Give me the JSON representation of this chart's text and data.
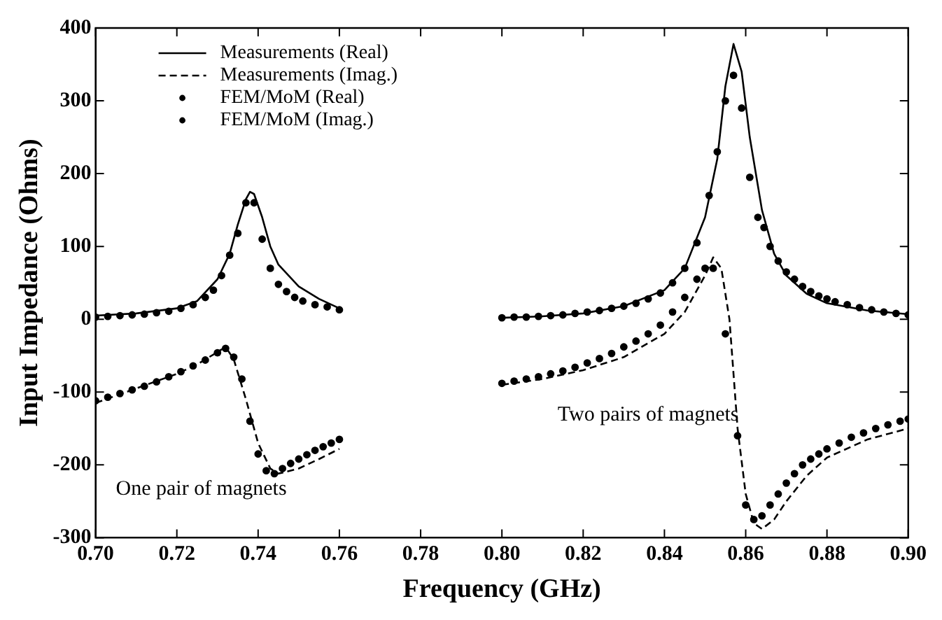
{
  "chart_data": {
    "type": "line",
    "xlabel": "Frequency (GHz)",
    "ylabel": "Input Impedance (Ohms)",
    "xlim": [
      0.7,
      0.9
    ],
    "ylim": [
      -300,
      400
    ],
    "xticks": [
      {
        "value": 0.7,
        "label": "0.70"
      },
      {
        "value": 0.72,
        "label": "0.72"
      },
      {
        "value": 0.74,
        "label": "0.74"
      },
      {
        "value": 0.76,
        "label": "0.76"
      },
      {
        "value": 0.78,
        "label": "0.78"
      },
      {
        "value": 0.8,
        "label": "0.80"
      },
      {
        "value": 0.82,
        "label": "0.82"
      },
      {
        "value": 0.84,
        "label": "0.84"
      },
      {
        "value": 0.86,
        "label": "0.86"
      },
      {
        "value": 0.88,
        "label": "0.88"
      },
      {
        "value": 0.9,
        "label": "0.90"
      }
    ],
    "yticks": [
      -300,
      -200,
      -100,
      0,
      100,
      200,
      300,
      400
    ],
    "grid": false,
    "legend": "top left",
    "series": [
      {
        "name": "Measurements (Real)",
        "type": "line",
        "line_style": "solid",
        "color": "#000000",
        "x": [
          0.7,
          0.71,
          0.72,
          0.725,
          0.73,
          0.733,
          0.735,
          0.737,
          0.738,
          0.739,
          0.741,
          0.743,
          0.745,
          0.75,
          0.755,
          0.76,
          0.78,
          0.8,
          0.81,
          0.82,
          0.83,
          0.84,
          0.845,
          0.85,
          0.853,
          0.855,
          0.857,
          0.859,
          0.861,
          0.864,
          0.867,
          0.87,
          0.875,
          0.88,
          0.89,
          0.9
        ],
        "values": [
          5,
          8,
          15,
          25,
          55,
          90,
          130,
          165,
          175,
          172,
          140,
          100,
          75,
          45,
          28,
          15,
          null,
          2,
          4,
          8,
          18,
          40,
          70,
          140,
          220,
          320,
          378,
          340,
          250,
          150,
          90,
          60,
          35,
          22,
          12,
          7
        ]
      },
      {
        "name": "Measurements (Imag.)",
        "type": "line",
        "line_style": "dashed",
        "color": "#000000",
        "x": [
          0.7,
          0.71,
          0.72,
          0.725,
          0.73,
          0.732,
          0.734,
          0.737,
          0.74,
          0.743,
          0.745,
          0.75,
          0.755,
          0.76,
          0.78,
          0.8,
          0.81,
          0.82,
          0.83,
          0.84,
          0.845,
          0.85,
          0.852,
          0.854,
          0.856,
          0.858,
          0.86,
          0.862,
          0.864,
          0.867,
          0.87,
          0.875,
          0.88,
          0.89,
          0.9
        ],
        "values": [
          -115,
          -95,
          -75,
          -62,
          -45,
          -38,
          -55,
          -110,
          -170,
          -205,
          -212,
          -205,
          -192,
          -178,
          null,
          -90,
          -82,
          -70,
          -52,
          -20,
          10,
          60,
          85,
          70,
          0,
          -150,
          -240,
          -280,
          -288,
          -275,
          -250,
          -215,
          -190,
          -165,
          -150
        ]
      },
      {
        "name": "FEM/MoM (Real)",
        "type": "scatter",
        "marker": "circle",
        "color": "#000000",
        "x": [
          0.7,
          0.703,
          0.706,
          0.709,
          0.712,
          0.715,
          0.718,
          0.721,
          0.724,
          0.727,
          0.729,
          0.731,
          0.733,
          0.735,
          0.737,
          0.739,
          0.741,
          0.743,
          0.745,
          0.747,
          0.749,
          0.751,
          0.754,
          0.757,
          0.76,
          0.8,
          0.803,
          0.806,
          0.809,
          0.812,
          0.815,
          0.818,
          0.821,
          0.824,
          0.827,
          0.83,
          0.833,
          0.836,
          0.839,
          0.842,
          0.845,
          0.848,
          0.851,
          0.853,
          0.855,
          0.857,
          0.859,
          0.861,
          0.863,
          0.8645,
          0.866,
          0.868,
          0.87,
          0.872,
          0.874,
          0.876,
          0.878,
          0.88,
          0.882,
          0.885,
          0.888,
          0.891,
          0.894,
          0.897,
          0.9
        ],
        "values": [
          3,
          4,
          5,
          6,
          7,
          9,
          11,
          15,
          20,
          30,
          40,
          60,
          88,
          118,
          160,
          160,
          110,
          70,
          48,
          38,
          30,
          25,
          20,
          17,
          13,
          2,
          3,
          3,
          4,
          5,
          6,
          8,
          10,
          12,
          15,
          18,
          22,
          28,
          36,
          50,
          70,
          105,
          170,
          230,
          300,
          335,
          290,
          195,
          140,
          126,
          100,
          80,
          65,
          55,
          45,
          38,
          32,
          28,
          24,
          20,
          16,
          13,
          10,
          8,
          6
        ]
      },
      {
        "name": "FEM/MoM (Imag.)",
        "type": "scatter",
        "marker": "circle",
        "color": "#000000",
        "x": [
          0.7,
          0.703,
          0.706,
          0.709,
          0.712,
          0.715,
          0.718,
          0.721,
          0.724,
          0.727,
          0.73,
          0.732,
          0.734,
          0.736,
          0.738,
          0.74,
          0.742,
          0.744,
          0.746,
          0.748,
          0.75,
          0.752,
          0.754,
          0.756,
          0.758,
          0.76,
          0.8,
          0.803,
          0.806,
          0.809,
          0.812,
          0.815,
          0.818,
          0.821,
          0.824,
          0.827,
          0.83,
          0.833,
          0.836,
          0.839,
          0.842,
          0.845,
          0.848,
          0.85,
          0.852,
          0.855,
          0.858,
          0.86,
          0.862,
          0.864,
          0.866,
          0.868,
          0.87,
          0.872,
          0.874,
          0.876,
          0.878,
          0.88,
          0.883,
          0.886,
          0.889,
          0.892,
          0.895,
          0.898,
          0.9
        ],
        "values": [
          -112,
          -107,
          -102,
          -97,
          -92,
          -86,
          -79,
          -72,
          -64,
          -56,
          -46,
          -40,
          -52,
          -82,
          -140,
          -185,
          -208,
          -212,
          -205,
          -198,
          -192,
          -186,
          -180,
          -175,
          -170,
          -165,
          -88,
          -85,
          -82,
          -79,
          -75,
          -71,
          -66,
          -60,
          -54,
          -47,
          -38,
          -30,
          -20,
          -8,
          10,
          30,
          55,
          70,
          70,
          -20,
          -160,
          -255,
          -275,
          -270,
          -255,
          -240,
          -225,
          -212,
          -200,
          -192,
          -185,
          -178,
          -170,
          -162,
          -156,
          -150,
          -145,
          -140,
          -137
        ]
      }
    ],
    "annotations": [
      "One pair of magnets",
      "Two pairs of magnets"
    ]
  }
}
